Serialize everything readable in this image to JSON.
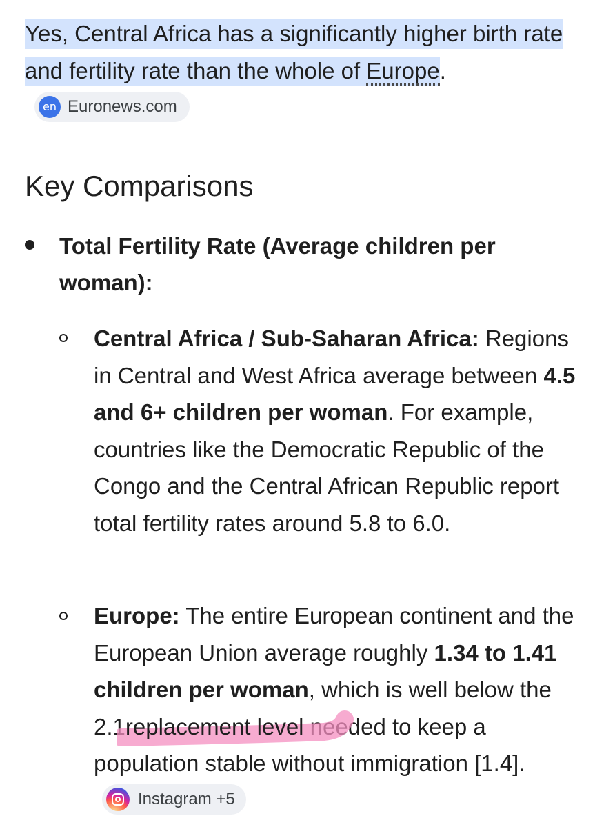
{
  "intro": {
    "text_before": "Yes, Central Africa has a significantly higher birth rate and fertility rate than the whole of ",
    "link_text": "Europe",
    "text_after": ".",
    "source_chip": {
      "icon_text": "en",
      "label": "Euronews.com"
    }
  },
  "section": {
    "heading": "Key Comparisons",
    "bullet": {
      "label": "Total Fertility Rate (Average children per woman):"
    },
    "items": [
      {
        "title": "Central Africa / Sub-Saharan Africa:",
        "text_1": "Regions in Central and West Africa average between ",
        "bold_1": "4.5 and 6+ children per woman",
        "text_2": ". For example, countries like the Democratic Republic of the Congo and the Central African Republic report total fertility rates around 5.8 to 6.0."
      },
      {
        "title": "Europe:",
        "text_1": " The entire European continent and the European Union average roughly ",
        "bold_1": "1.34 to 1.41 children per woman",
        "text_2": ", which is well below the 2.1",
        "marked": "replacement level",
        "text_3": " needed to keep a population stable without immigration [1.4].",
        "source_chip": {
          "icon": "instagram-icon",
          "label": "Instagram +5"
        }
      }
    ]
  },
  "colors": {
    "highlight": "#d3e3fd",
    "chip_bg": "#eef0f4",
    "marker": "#f48fc0",
    "euronews_icon": "#3b73e8"
  }
}
